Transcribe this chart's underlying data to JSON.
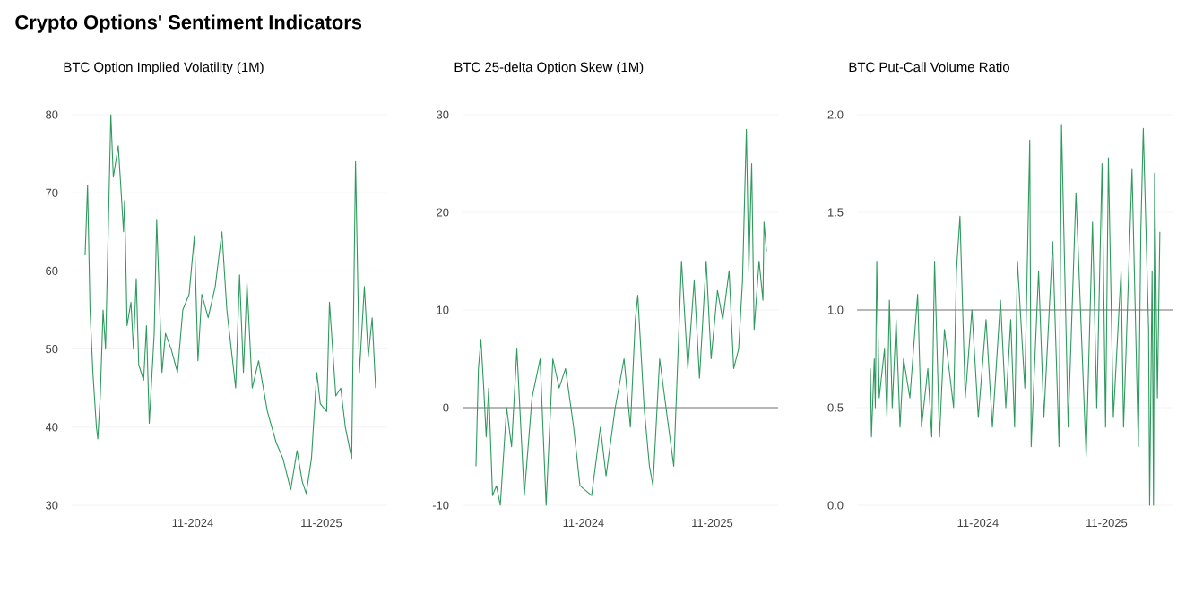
{
  "chart_data": [
    {
      "type": "line",
      "title": "Crypto Options' Sentiment Indicators",
      "subtitle": "BTC Option Implied Volatility (1M)",
      "grid": "y",
      "xlim": [
        "2023-11-24",
        "2026-05-07"
      ],
      "xticks": [
        {
          "value": "2024-11-01",
          "label": "11-2024"
        },
        {
          "value": "2025-11-01",
          "label": "11-2025"
        }
      ],
      "ylim": [
        30,
        80
      ],
      "yticks": [
        30,
        40,
        50,
        60,
        70,
        80
      ],
      "series": [
        {
          "color": "#2e9a5e",
          "x": [
            "2024-01-01",
            "2024-01-08",
            "2024-01-15",
            "2024-01-23",
            "2024-02-02",
            "2024-02-06",
            "2024-02-13",
            "2024-02-21",
            "2024-02-28",
            "2024-03-07",
            "2024-03-14",
            "2024-03-21",
            "2024-04-04",
            "2024-04-11",
            "2024-04-19",
            "2024-04-22",
            "2024-04-29",
            "2024-05-10",
            "2024-05-17",
            "2024-05-25",
            "2024-06-01",
            "2024-06-15",
            "2024-06-23",
            "2024-07-01",
            "2024-07-15",
            "2024-07-22",
            "2024-08-06",
            "2024-08-16",
            "2024-09-01",
            "2024-09-19",
            "2024-10-04",
            "2024-10-22",
            "2024-11-06",
            "2024-11-16",
            "2024-11-27",
            "2024-12-15",
            "2025-01-04",
            "2025-01-23",
            "2025-02-06",
            "2025-02-21",
            "2025-03-03",
            "2025-03-14",
            "2025-03-25",
            "2025-04-04",
            "2025-04-19",
            "2025-05-07",
            "2025-06-01",
            "2025-06-26",
            "2025-07-15",
            "2025-08-06",
            "2025-08-24",
            "2025-09-08",
            "2025-09-19",
            "2025-10-04",
            "2025-10-19",
            "2025-10-29",
            "2025-11-16",
            "2025-11-24",
            "2025-12-12",
            "2025-12-26",
            "2026-01-08",
            "2026-01-26",
            "2026-02-06",
            "2026-02-17",
            "2026-03-03",
            "2026-03-14",
            "2026-03-25",
            "2026-04-04"
          ],
          "values": [
            62,
            71,
            55,
            47,
            40,
            38.5,
            44,
            55,
            50,
            66,
            80,
            72,
            76,
            71,
            65,
            69,
            53,
            56,
            50,
            59,
            48,
            46,
            53,
            40.5,
            52,
            66.5,
            47,
            52,
            50,
            47,
            55,
            57,
            64.5,
            48.5,
            57,
            54,
            58,
            65,
            55,
            49,
            45,
            59.5,
            47,
            58.5,
            45,
            48.5,
            42,
            38,
            36,
            32,
            37,
            33,
            31.5,
            36,
            47,
            43,
            42,
            56,
            44,
            45,
            40,
            36,
            74,
            47,
            58,
            49,
            54,
            45
          ]
        }
      ]
    },
    {
      "type": "line",
      "title": "BTC 25-delta Option Skew (1M)",
      "grid": "y",
      "xlim": [
        "2023-11-24",
        "2026-05-07"
      ],
      "xticks": [
        {
          "value": "2024-11-01",
          "label": "11-2024"
        },
        {
          "value": "2025-11-01",
          "label": "11-2025"
        }
      ],
      "ylim": [
        -10,
        30
      ],
      "yticks": [
        -10,
        0,
        10,
        20,
        30
      ],
      "ref_lines": [
        {
          "axis": "y",
          "value": 0,
          "color": "#777777"
        }
      ],
      "series": [
        {
          "color": "#2e9a5e",
          "x": [
            "2024-01-01",
            "2024-01-08",
            "2024-01-15",
            "2024-01-23",
            "2024-01-30",
            "2024-02-06",
            "2024-02-17",
            "2024-02-28",
            "2024-03-10",
            "2024-03-28",
            "2024-04-11",
            "2024-04-26",
            "2024-05-17",
            "2024-06-08",
            "2024-07-01",
            "2024-07-18",
            "2024-08-06",
            "2024-08-24",
            "2024-09-11",
            "2024-10-04",
            "2024-10-22",
            "2024-11-24",
            "2024-12-19",
            "2025-01-04",
            "2025-01-30",
            "2025-02-24",
            "2025-03-14",
            "2025-03-28",
            "2025-04-04",
            "2025-04-22",
            "2025-05-07",
            "2025-05-17",
            "2025-06-05",
            "2025-06-23",
            "2025-07-15",
            "2025-08-06",
            "2025-08-24",
            "2025-09-11",
            "2025-09-26",
            "2025-10-15",
            "2025-10-29",
            "2025-11-16",
            "2025-12-01",
            "2025-12-19",
            "2026-01-01",
            "2026-01-15",
            "2026-01-26",
            "2026-02-06",
            "2026-02-13",
            "2026-02-21",
            "2026-02-28",
            "2026-03-14",
            "2026-03-25",
            "2026-03-28",
            "2026-04-04"
          ],
          "values": [
            -6,
            4,
            7,
            2,
            -3,
            2,
            -9,
            -8,
            -10,
            0,
            -4,
            6,
            -9,
            1,
            5,
            -10,
            5,
            2,
            4,
            -2,
            -8,
            -9,
            -2,
            -7,
            0,
            5,
            -2,
            9,
            11.5,
            0,
            -6,
            -8,
            5,
            0,
            -6,
            15,
            4,
            13,
            3,
            15,
            5,
            12,
            9,
            14,
            4,
            6,
            13,
            28.5,
            14,
            25,
            8,
            15,
            11,
            19,
            16
          ]
        }
      ]
    },
    {
      "type": "line",
      "title": "BTC Put-Call Volume Ratio",
      "grid": "y",
      "xlim": [
        "2023-11-24",
        "2026-05-07"
      ],
      "xticks": [
        {
          "value": "2024-11-01",
          "label": "11-2024"
        },
        {
          "value": "2025-11-01",
          "label": "11-2025"
        }
      ],
      "ylim": [
        0,
        2
      ],
      "yticks": [
        {
          "value": 0,
          "label": "0.0"
        },
        0.5,
        {
          "value": 1,
          "label": "1.0"
        },
        1.5,
        {
          "value": 2,
          "label": "2.0"
        }
      ],
      "ref_lines": [
        {
          "axis": "y",
          "value": 1,
          "color": "#777777"
        }
      ],
      "series": [
        {
          "color": "#2e9a5e",
          "x": [
            "2024-01-01",
            "2024-01-04",
            "2024-01-12",
            "2024-01-15",
            "2024-01-19",
            "2024-01-26",
            "2024-02-10",
            "2024-02-17",
            "2024-02-24",
            "2024-03-03",
            "2024-03-14",
            "2024-03-25",
            "2024-04-04",
            "2024-04-22",
            "2024-05-14",
            "2024-05-25",
            "2024-06-12",
            "2024-06-23",
            "2024-07-01",
            "2024-07-15",
            "2024-07-29",
            "2024-08-24",
            "2024-09-01",
            "2024-09-11",
            "2024-09-26",
            "2024-10-15",
            "2024-11-02",
            "2024-11-24",
            "2024-12-12",
            "2025-01-04",
            "2025-01-19",
            "2025-02-02",
            "2025-02-13",
            "2025-02-21",
            "2025-03-14",
            "2025-03-28",
            "2025-04-01",
            "2025-04-22",
            "2025-05-07",
            "2025-06-01",
            "2025-06-19",
            "2025-06-26",
            "2025-07-15",
            "2025-08-06",
            "2025-09-04",
            "2025-09-22",
            "2025-10-04",
            "2025-10-19",
            "2025-10-29",
            "2025-11-06",
            "2025-11-20",
            "2025-12-12",
            "2025-12-19",
            "2026-01-12",
            "2026-01-30",
            "2026-02-06",
            "2026-02-13",
            "2026-02-28",
            "2026-03-03",
            "2026-03-10",
            "2026-03-14",
            "2026-03-17",
            "2026-03-25",
            "2026-04-01"
          ],
          "values": [
            0.7,
            0.35,
            0.75,
            0.5,
            1.25,
            0.55,
            0.8,
            0.45,
            1.05,
            0.5,
            0.95,
            0.4,
            0.75,
            0.55,
            1.08,
            0.4,
            0.7,
            0.35,
            1.25,
            0.35,
            0.9,
            0.5,
            1.2,
            1.48,
            0.55,
            1.0,
            0.45,
            0.95,
            0.4,
            1.05,
            0.5,
            0.95,
            0.4,
            1.25,
            0.6,
            1.87,
            0.3,
            1.2,
            0.45,
            1.35,
            0.3,
            1.95,
            0.4,
            1.6,
            0.25,
            1.45,
            0.5,
            1.75,
            0.4,
            1.78,
            0.45,
            1.2,
            0.4,
            1.72,
            0.3,
            1.4,
            1.93,
            0.9,
            0.0,
            1.2,
            0.0,
            1.7,
            0.55,
            1.4
          ]
        }
      ]
    }
  ]
}
